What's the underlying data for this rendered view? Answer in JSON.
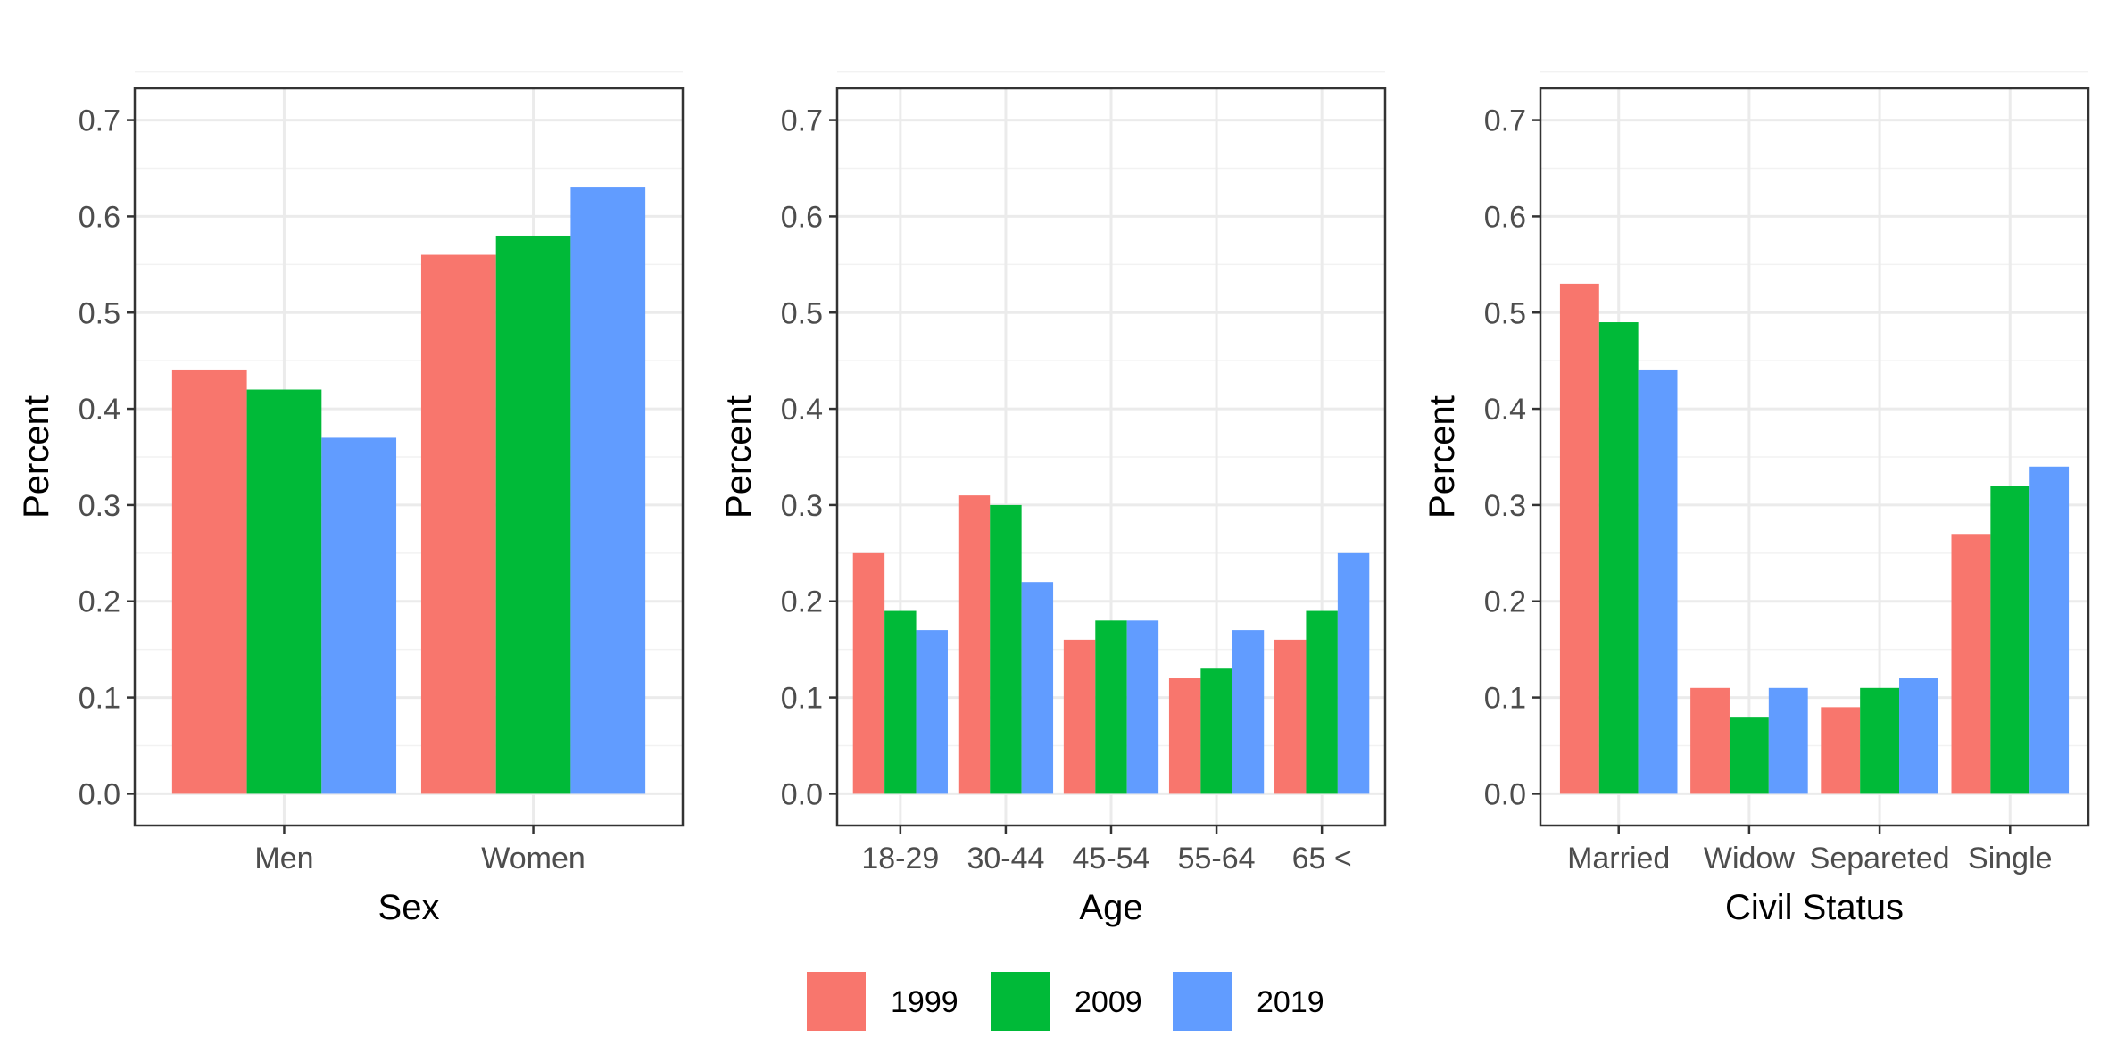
{
  "chart_data": [
    {
      "type": "bar",
      "xlabel": "Sex",
      "ylabel": "Percent",
      "categories": [
        "Men",
        "Women"
      ],
      "series": [
        {
          "name": "1999",
          "values": [
            0.44,
            0.56
          ]
        },
        {
          "name": "2009",
          "values": [
            0.42,
            0.58
          ]
        },
        {
          "name": "2019",
          "values": [
            0.37,
            0.63
          ]
        }
      ],
      "ylim": [
        -0.033,
        0.733
      ],
      "yticks": [
        "0.0",
        "0.1",
        "0.2",
        "0.3",
        "0.4",
        "0.5",
        "0.6",
        "0.7"
      ],
      "grid": true
    },
    {
      "type": "bar",
      "xlabel": "Age",
      "ylabel": "Percent",
      "categories": [
        "18-29",
        "30-44",
        "45-54",
        "55-64",
        "65 <"
      ],
      "series": [
        {
          "name": "1999",
          "values": [
            0.25,
            0.31,
            0.16,
            0.12,
            0.16
          ]
        },
        {
          "name": "2009",
          "values": [
            0.19,
            0.3,
            0.18,
            0.13,
            0.19
          ]
        },
        {
          "name": "2019",
          "values": [
            0.17,
            0.22,
            0.18,
            0.17,
            0.25
          ]
        }
      ],
      "ylim": [
        -0.033,
        0.733
      ],
      "yticks": [
        "0.0",
        "0.1",
        "0.2",
        "0.3",
        "0.4",
        "0.5",
        "0.6",
        "0.7"
      ],
      "grid": true
    },
    {
      "type": "bar",
      "xlabel": "Civil Status",
      "ylabel": "Percent",
      "categories": [
        "Married",
        "Widow",
        "Separeted",
        "Single"
      ],
      "series": [
        {
          "name": "1999",
          "values": [
            0.53,
            0.11,
            0.09,
            0.27
          ]
        },
        {
          "name": "2009",
          "values": [
            0.49,
            0.08,
            0.11,
            0.32
          ]
        },
        {
          "name": "2019",
          "values": [
            0.44,
            0.11,
            0.12,
            0.34
          ]
        }
      ],
      "ylim": [
        -0.033,
        0.733
      ],
      "yticks": [
        "0.0",
        "0.1",
        "0.2",
        "0.3",
        "0.4",
        "0.5",
        "0.6",
        "0.7"
      ],
      "grid": true
    }
  ],
  "legend": {
    "position": "bottom",
    "items": [
      {
        "label": "1999",
        "color": "#F8766D"
      },
      {
        "label": "2009",
        "color": "#00BA38"
      },
      {
        "label": "2019",
        "color": "#619CFF"
      }
    ]
  },
  "colors": {
    "grid_major": "#ebebeb",
    "grid_minor": "#f2f2f2",
    "panel_border": "#333333",
    "tick": "#333333"
  }
}
